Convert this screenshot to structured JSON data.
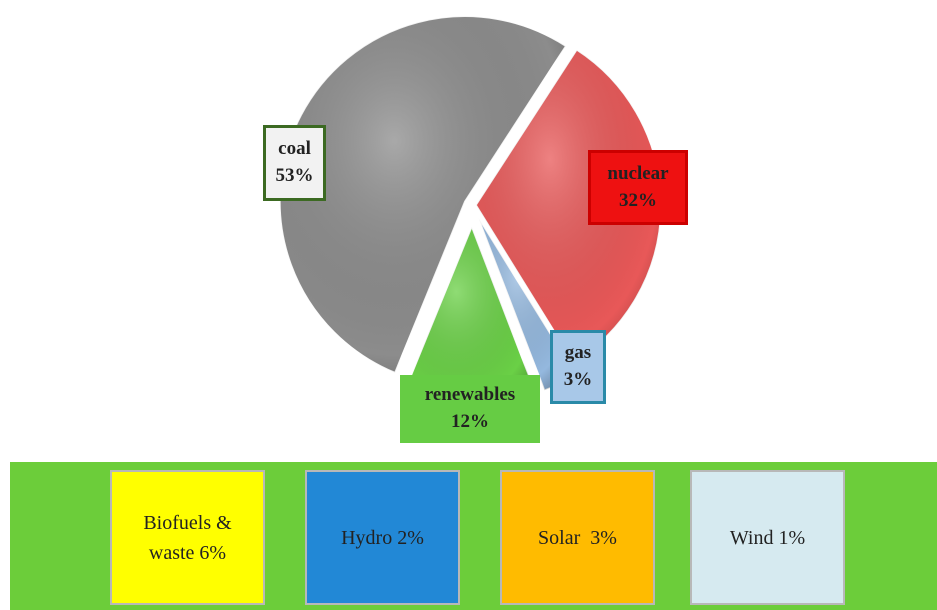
{
  "chart_data": [
    {
      "type": "pie",
      "categories": [
        "nuclear",
        "gas",
        "renewables",
        "coal"
      ],
      "values": [
        32,
        3,
        12,
        53
      ],
      "value_labels": [
        "32%",
        "3%",
        "12%",
        "53%"
      ],
      "colors": [
        "#e85858",
        "#94b8de",
        "#6ad046",
        "#8c8c8c"
      ]
    },
    {
      "type": "boxes",
      "categories": [
        "Biofuels &",
        "Hydro",
        "Solar ",
        "Wind"
      ],
      "values": [
        6,
        2,
        3,
        1
      ],
      "value_labels": [
        "waste 6%",
        "2%",
        "3%",
        "1%"
      ],
      "colors": [
        "#ffff00",
        "#2288d6",
        "#ffbb00",
        "#d6eaf0"
      ]
    }
  ]
}
